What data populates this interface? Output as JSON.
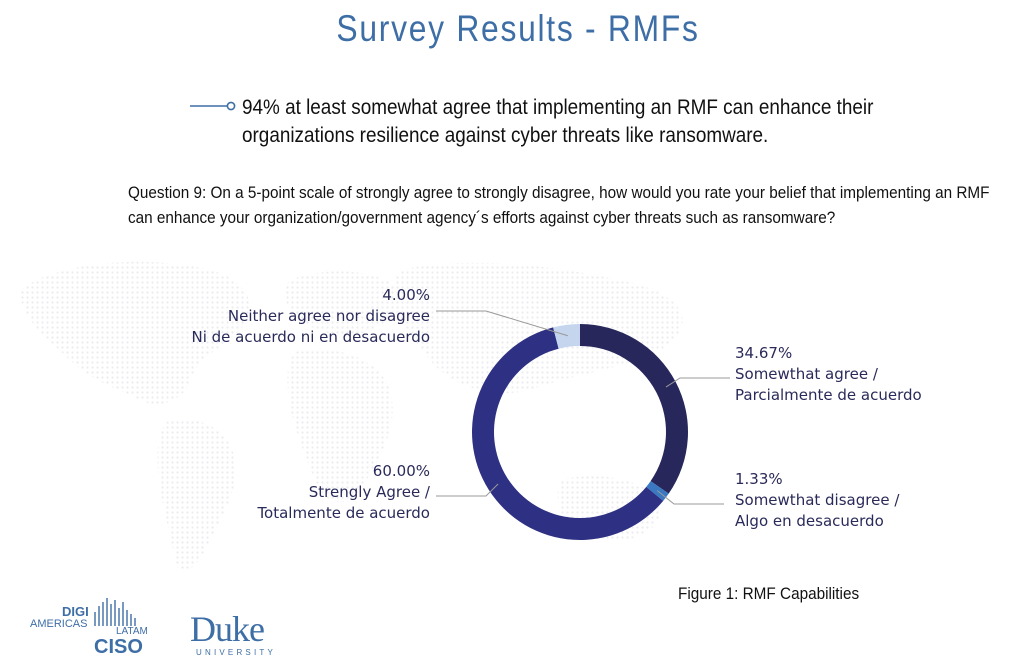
{
  "title": "Survey Results - RMFs",
  "bullet": {
    "icon": "line-circle-bullet-icon",
    "text": "94% at least somewhat agree that implementing an RMF can enhance their organizations resilience against cyber threats like ransomware."
  },
  "question": "Question 9: On a 5-point scale of strongly agree to strongly disagree, how would you rate your belief that implementing an RMF can enhance your organization/government agency´s efforts against cyber threats such as ransomware?",
  "chart_data": {
    "type": "pie",
    "donut": true,
    "slices": [
      {
        "pct_label": "34.67%",
        "value": 34.67,
        "line1": "Somewthat agree /",
        "line2": "Parcialmente de acuerdo",
        "color": "#27275c"
      },
      {
        "pct_label": "1.33%",
        "value": 1.33,
        "line1": "Somewthat disagree /",
        "line2": "Algo en desacuerdo",
        "color": "#3a78c2"
      },
      {
        "pct_label": "60.00%",
        "value": 60.0,
        "line1": "Strengly Agree /",
        "line2": "Totalmente de acuerdo",
        "color": "#2e3183"
      },
      {
        "pct_label": "4.00%",
        "value": 4.0,
        "line1": "Neither agree nor disagree",
        "line2": "Ni de acuerdo ni en desacuerdo",
        "color": "#c5d5ee"
      }
    ]
  },
  "caption": "Figure 1: RMF Capabilities",
  "logos": {
    "digi": {
      "line1": "DIGI",
      "line2": "AMERICAS",
      "line3": "LATAM",
      "line4": "CISO"
    },
    "duke": {
      "name": "Duke",
      "sub": "UNIVERSITY"
    }
  },
  "colors": {
    "title": "#3e6ea6",
    "label": "#2a2a5a",
    "leader": "#999999"
  }
}
